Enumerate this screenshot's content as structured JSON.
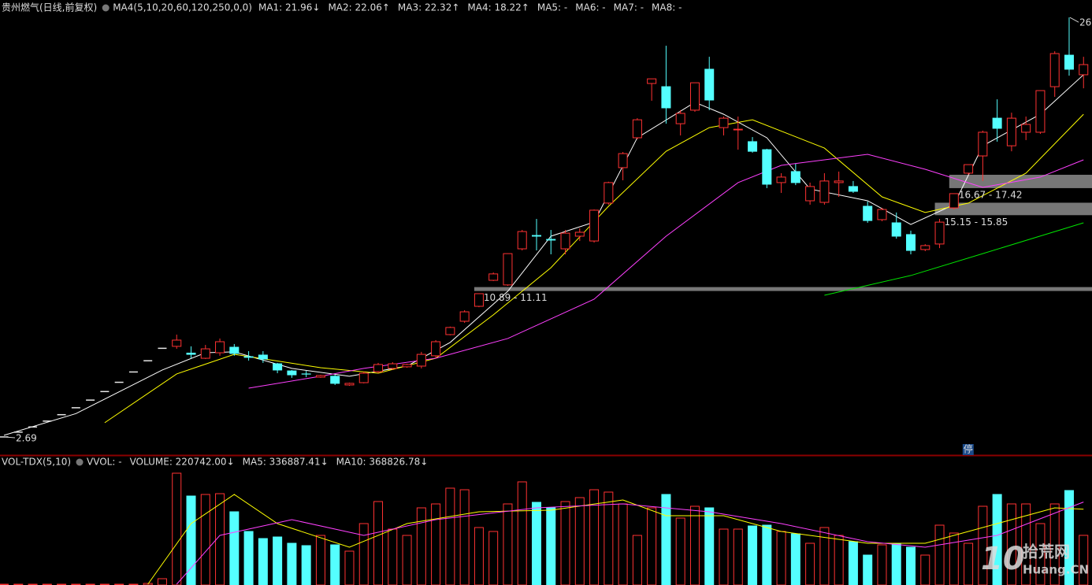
{
  "chart_data": [
    {
      "type": "candlestick",
      "title": "贵州燃气(日线,前复权)",
      "indicator": "MA4(5,10,20,60,120,250,0,0)",
      "legend": [
        {
          "label": "MA1: 21.96↓",
          "color": "#ffffff"
        },
        {
          "label": "MA2: 22.06↑",
          "color": "#ffff00"
        },
        {
          "label": "MA3: 22.32↑",
          "color": "#ff40ff"
        },
        {
          "label": "MA4: 18.22↑",
          "color": "#00e600"
        },
        {
          "label": "MA5: -",
          "color": "#ffffff"
        },
        {
          "label": "MA6: -",
          "color": "#3060ff"
        },
        {
          "label": "MA7: -",
          "color": "#ffffff"
        },
        {
          "label": "MA8: -",
          "color": "#ffff00"
        }
      ],
      "up_color": "#ff3232",
      "down_color": "#54ffff",
      "flat_color": "#e8e8e8",
      "ylim": [
        1.67,
        27.24
      ],
      "open": [
        2.69,
        2.96,
        3.25,
        3.58,
        3.94,
        4.33,
        4.76,
        5.24,
        5.76,
        6.34,
        6.97,
        7.67,
        7.78,
        7.4,
        7.11,
        7.42,
        7.73,
        7.2,
        7.29,
        6.8,
        6.4,
        6.23,
        6.05,
        6.1,
        5.61,
        5.74,
        6.36,
        6.54,
        6.63,
        6.67,
        7.25,
        8.44,
        9.19,
        10.03,
        11.49,
        11.23,
        13.26,
        14.01,
        13.79,
        13.26,
        13.97,
        13.7,
        15.83,
        17.82,
        19.5,
        22.55,
        22.37,
        20.29,
        21.05,
        23.35,
        20.07,
        19.94,
        19.28,
        18.83,
        16.98,
        17.6,
        15.96,
        15.87,
        16.98,
        16.76,
        15.65,
        14.9,
        14.72,
        14.06,
        13.22,
        13.53,
        15.56,
        17.51,
        18.48,
        20.6,
        19.05,
        19.81,
        19.81,
        22.37,
        24.14,
        23.04
      ],
      "close": [
        2.69,
        2.96,
        3.25,
        3.58,
        3.94,
        4.33,
        4.76,
        5.24,
        5.76,
        6.34,
        6.97,
        7.67,
        8.13,
        7.33,
        7.64,
        8.04,
        7.38,
        7.16,
        7.07,
        6.45,
        6.18,
        6.22,
        6.14,
        5.7,
        5.7,
        6.27,
        6.76,
        6.8,
        6.76,
        7.33,
        8.04,
        8.84,
        9.72,
        10.74,
        11.85,
        12.99,
        14.23,
        13.97,
        13.75,
        14.14,
        14.19,
        15.43,
        16.98,
        18.61,
        20.51,
        22.81,
        21.18,
        20.87,
        22.59,
        21.62,
        20.6,
        19.98,
        18.74,
        16.89,
        17.29,
        16.98,
        16.76,
        17.07,
        17.07,
        16.49,
        14.85,
        15.47,
        13.97,
        13.17,
        13.44,
        14.76,
        16.36,
        17.99,
        19.81,
        20.03,
        20.6,
        20.25,
        22.15,
        24.23,
        23.35,
        23.61
      ],
      "high": [
        2.69,
        2.96,
        3.25,
        3.58,
        3.94,
        4.33,
        4.76,
        5.24,
        5.76,
        6.34,
        6.97,
        7.67,
        8.44,
        7.78,
        7.86,
        8.22,
        7.91,
        7.51,
        7.51,
        6.85,
        6.45,
        6.4,
        6.18,
        6.18,
        5.74,
        6.36,
        6.85,
        6.89,
        6.8,
        7.47,
        8.13,
        8.89,
        9.81,
        10.74,
        11.93,
        13.0,
        14.32,
        14.94,
        14.32,
        14.32,
        14.41,
        15.47,
        17.03,
        18.7,
        20.6,
        22.81,
        24.67,
        21.05,
        22.59,
        24.05,
        20.69,
        20.69,
        19.54,
        18.88,
        17.51,
        18.04,
        16.98,
        17.51,
        17.6,
        17.07,
        15.92,
        15.56,
        15.3,
        14.28,
        13.52,
        14.94,
        16.36,
        17.99,
        19.9,
        21.66,
        20.91,
        20.69,
        22.15,
        24.36,
        26.26,
        24.05
      ],
      "low": [
        2.69,
        2.96,
        3.25,
        3.58,
        3.94,
        4.33,
        4.76,
        5.24,
        5.76,
        6.34,
        6.97,
        7.67,
        7.64,
        7.11,
        7.07,
        7.25,
        7.25,
        6.98,
        6.85,
        6.27,
        6.01,
        6.05,
        6.01,
        5.61,
        5.56,
        5.7,
        6.27,
        6.45,
        6.58,
        6.54,
        7.11,
        8.4,
        9.1,
        9.98,
        11.45,
        11.18,
        13.17,
        13.17,
        12.95,
        12.95,
        13.7,
        13.61,
        15.74,
        17.11,
        19.41,
        21.58,
        20.29,
        19.63,
        20.96,
        21.05,
        19.63,
        18.83,
        18.66,
        16.67,
        16.4,
        16.84,
        15.74,
        15.74,
        16.18,
        16.4,
        14.72,
        14.81,
        13.83,
        12.95,
        13.13,
        13.3,
        15.47,
        17.42,
        17.07,
        19.28,
        18.74,
        19.37,
        19.72,
        21.8,
        22.99,
        22.28
      ],
      "lines": [
        {
          "color": "#ffffff",
          "x": [
            0,
            5,
            11,
            14,
            16,
            20,
            24,
            28,
            31,
            35,
            38,
            41,
            44,
            48,
            50,
            53,
            56,
            60,
            63,
            66,
            68,
            72,
            75
          ],
          "values": [
            2.78,
            4.0,
            6.45,
            7.42,
            7.47,
            6.54,
            6.1,
            6.67,
            8.0,
            10.87,
            13.97,
            14.76,
            19.5,
            21.49,
            20.82,
            19.5,
            16.62,
            15.96,
            14.63,
            15.74,
            19.05,
            20.82,
            23.04
          ]
        },
        {
          "color": "#ffff00",
          "x": [
            7,
            12,
            16,
            22,
            26,
            30,
            34,
            38,
            42,
            46,
            49,
            52,
            57,
            61,
            64,
            67,
            71,
            75
          ],
          "values": [
            3.49,
            6.23,
            7.33,
            6.58,
            6.27,
            7.11,
            9.55,
            12.2,
            15.65,
            18.74,
            20.07,
            20.51,
            18.92,
            16.18,
            15.3,
            15.83,
            17.51,
            20.82
          ]
        },
        {
          "color": "#ff40ff",
          "x": [
            17,
            22,
            25,
            30,
            35,
            41,
            46,
            51,
            54,
            60,
            64,
            68,
            72,
            75
          ],
          "values": [
            5.43,
            6.1,
            6.54,
            7.11,
            8.22,
            10.43,
            13.97,
            16.98,
            17.95,
            18.57,
            17.73,
            16.71,
            17.29,
            18.26
          ]
        },
        {
          "color": "#00e600",
          "x": [
            57,
            63,
            68,
            75
          ],
          "values": [
            10.65,
            11.76,
            12.99,
            14.72
          ]
        }
      ],
      "zones": [
        {
          "start": 33,
          "low": 10.89,
          "high": 11.11,
          "label": "10.89 - 11.11"
        },
        {
          "start": 65,
          "low": 15.15,
          "high": 15.85,
          "label": "15.15 - 15.85"
        },
        {
          "start": 66,
          "low": 16.67,
          "high": 17.42,
          "label": "16.67 - 17.42"
        }
      ],
      "annotations": [
        {
          "x": 0,
          "value": 2.69,
          "label": "2.69"
        },
        {
          "x": 74,
          "value": 26.26,
          "label": "26"
        }
      ],
      "marker": {
        "x": 66,
        "label": "停"
      }
    },
    {
      "type": "bar",
      "title": "VOL-TDX(5,10)",
      "legend": [
        {
          "label": "VVOL: -",
          "color": "#ffffff"
        },
        {
          "label": "VOLUME: 220742.00↓",
          "color": "#ffff00"
        },
        {
          "label": "MA5: 336887.41↓",
          "color": "#ffffff"
        },
        {
          "label": "MA10: 368826.78↓",
          "color": "#ff40ff"
        }
      ],
      "ylim": [
        0,
        518000
      ],
      "values": [
        3500,
        3500,
        3500,
        3500,
        3500,
        3500,
        3500,
        3500,
        3500,
        3500,
        7000,
        28000,
        497000,
        395500,
        402500,
        406000,
        325500,
        238000,
        206500,
        213500,
        185500,
        175000,
        220500,
        178500,
        150500,
        273000,
        371000,
        248500,
        220500,
        343000,
        360500,
        430500,
        423500,
        255500,
        238000,
        360500,
        458500,
        367500,
        343000,
        371000,
        388500,
        423500,
        413000,
        360500,
        220500,
        343000,
        402500,
        297500,
        350000,
        343000,
        248500,
        248500,
        262500,
        266000,
        238000,
        227500,
        185500,
        255500,
        220500,
        192500,
        133000,
        178500,
        185500,
        168000,
        133000,
        266000,
        231000,
        185500,
        350000,
        402500,
        360500,
        360500,
        273000,
        360500,
        420000,
        220742
      ],
      "lines": [
        {
          "color": "#ffff00",
          "x": [
            10,
            13,
            16,
            19,
            24,
            28,
            33,
            38,
            43,
            46,
            50,
            54,
            60,
            64,
            69,
            73,
            75
          ],
          "values": [
            3500,
            273000,
            402500,
            273000,
            168000,
            273000,
            325500,
            332500,
            378000,
            308000,
            308000,
            238000,
            185500,
            185500,
            273000,
            343000,
            336887.41
          ]
        },
        {
          "color": "#ff40ff",
          "x": [
            12,
            15,
            20,
            25,
            30,
            37,
            43,
            49,
            54,
            60,
            64,
            69,
            75
          ],
          "values": [
            3500,
            220500,
            290500,
            220500,
            290500,
            343000,
            360500,
            325500,
            273000,
            192500,
            168000,
            220500,
            368826.78
          ]
        }
      ],
      "watermark": [
        "10",
        "拾荒网",
        "Huang.CN"
      ]
    }
  ]
}
